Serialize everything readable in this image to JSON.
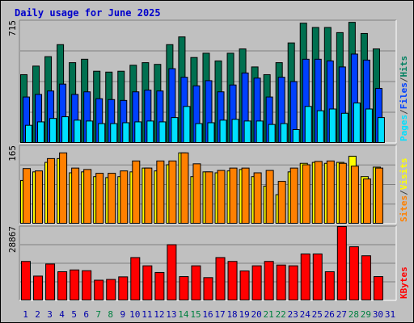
{
  "chart_data": {
    "type": "bar",
    "title": "Daily usage for June 2025",
    "categories": [
      "1",
      "2",
      "3",
      "4",
      "5",
      "6",
      "7",
      "8",
      "9",
      "10",
      "11",
      "12",
      "13",
      "14",
      "15",
      "16",
      "17",
      "18",
      "19",
      "20",
      "21",
      "22",
      "23",
      "24",
      "25",
      "26",
      "27",
      "28",
      "29",
      "30",
      "31"
    ],
    "weekend_days": [
      "7",
      "8",
      "14",
      "15",
      "21",
      "22",
      "28",
      "29"
    ],
    "panels": [
      {
        "id": "hits-panel",
        "axis_max_label": "715",
        "ylim": [
          0,
          715
        ],
        "legend": [
          {
            "label": "Pages",
            "color": "#00e0ff"
          },
          {
            "label": "/",
            "color": "#404040"
          },
          {
            "label": "Files",
            "color": "#0040ff"
          },
          {
            "label": "/",
            "color": "#404040"
          },
          {
            "label": "Hits",
            "color": "#008060"
          }
        ],
        "series": [
          {
            "name": "Hits",
            "color": "#007050",
            "values": [
              400,
              450,
              505,
              575,
              470,
              490,
              420,
              415,
              420,
              455,
              470,
              460,
              575,
              620,
              500,
              525,
              480,
              525,
              550,
              445,
              400,
              470,
              585,
              700,
              675,
              675,
              645,
              705,
              640,
              550,
              0
            ]
          },
          {
            "name": "Files",
            "color": "#0040ff",
            "values": [
              270,
              285,
              305,
              345,
              285,
              300,
              260,
              255,
              250,
              300,
              310,
              305,
              435,
              385,
              335,
              365,
              300,
              340,
              410,
              380,
              270,
              385,
              360,
              490,
              490,
              480,
              445,
              520,
              485,
              320,
              0
            ]
          },
          {
            "name": "Pages",
            "color": "#00e0ff",
            "values": [
              105,
              125,
              145,
              155,
              135,
              130,
              115,
              115,
              120,
              125,
              130,
              125,
              150,
              215,
              115,
              120,
              135,
              140,
              130,
              130,
              110,
              115,
              80,
              215,
              190,
              200,
              175,
              235,
              200,
              150,
              0
            ]
          }
        ]
      },
      {
        "id": "visits-panel",
        "axis_max_label": "165",
        "ylim": [
          0,
          165
        ],
        "legend": [
          {
            "label": "Sites",
            "color": "#ff8000"
          },
          {
            "label": "/",
            "color": "#404040"
          },
          {
            "label": "Visits",
            "color": "#ffff00"
          }
        ],
        "series": [
          {
            "name": "Visits",
            "color": "#ffff00",
            "values": [
              92,
              110,
              130,
              138,
              108,
              110,
              100,
              98,
              100,
              110,
              118,
              112,
              125,
              150,
              100,
              110,
              108,
              112,
              115,
              100,
              80,
              62,
              110,
              128,
              130,
              128,
              130,
              143,
              100,
              120,
              0
            ]
          },
          {
            "name": "Sites",
            "color": "#ff8000",
            "values": [
              117,
              112,
              138,
              150,
              118,
              115,
              107,
              107,
              112,
              133,
              118,
              133,
              133,
              150,
              127,
              110,
              113,
              118,
              118,
              108,
              113,
              90,
              118,
              125,
              132,
              133,
              128,
              122,
              95,
              118,
              0
            ]
          }
        ]
      },
      {
        "id": "kbytes-panel",
        "axis_max_label": "28867",
        "ylim": [
          0,
          28867
        ],
        "legend": [
          {
            "label": "KBytes",
            "color": "#ff0000"
          }
        ],
        "series": [
          {
            "name": "KBytes",
            "color": "#ff0000",
            "values": [
              15300,
              9600,
              14300,
              11300,
              12000,
              11700,
              8000,
              8300,
              9300,
              16800,
              13600,
              11000,
              21800,
              9400,
              13600,
              9000,
              16800,
              15300,
              11600,
              13600,
              15300,
              13900,
              13600,
              18200,
              18200,
              11300,
              28867,
              21000,
              17500,
              9400,
              0
            ]
          }
        ]
      }
    ]
  }
}
